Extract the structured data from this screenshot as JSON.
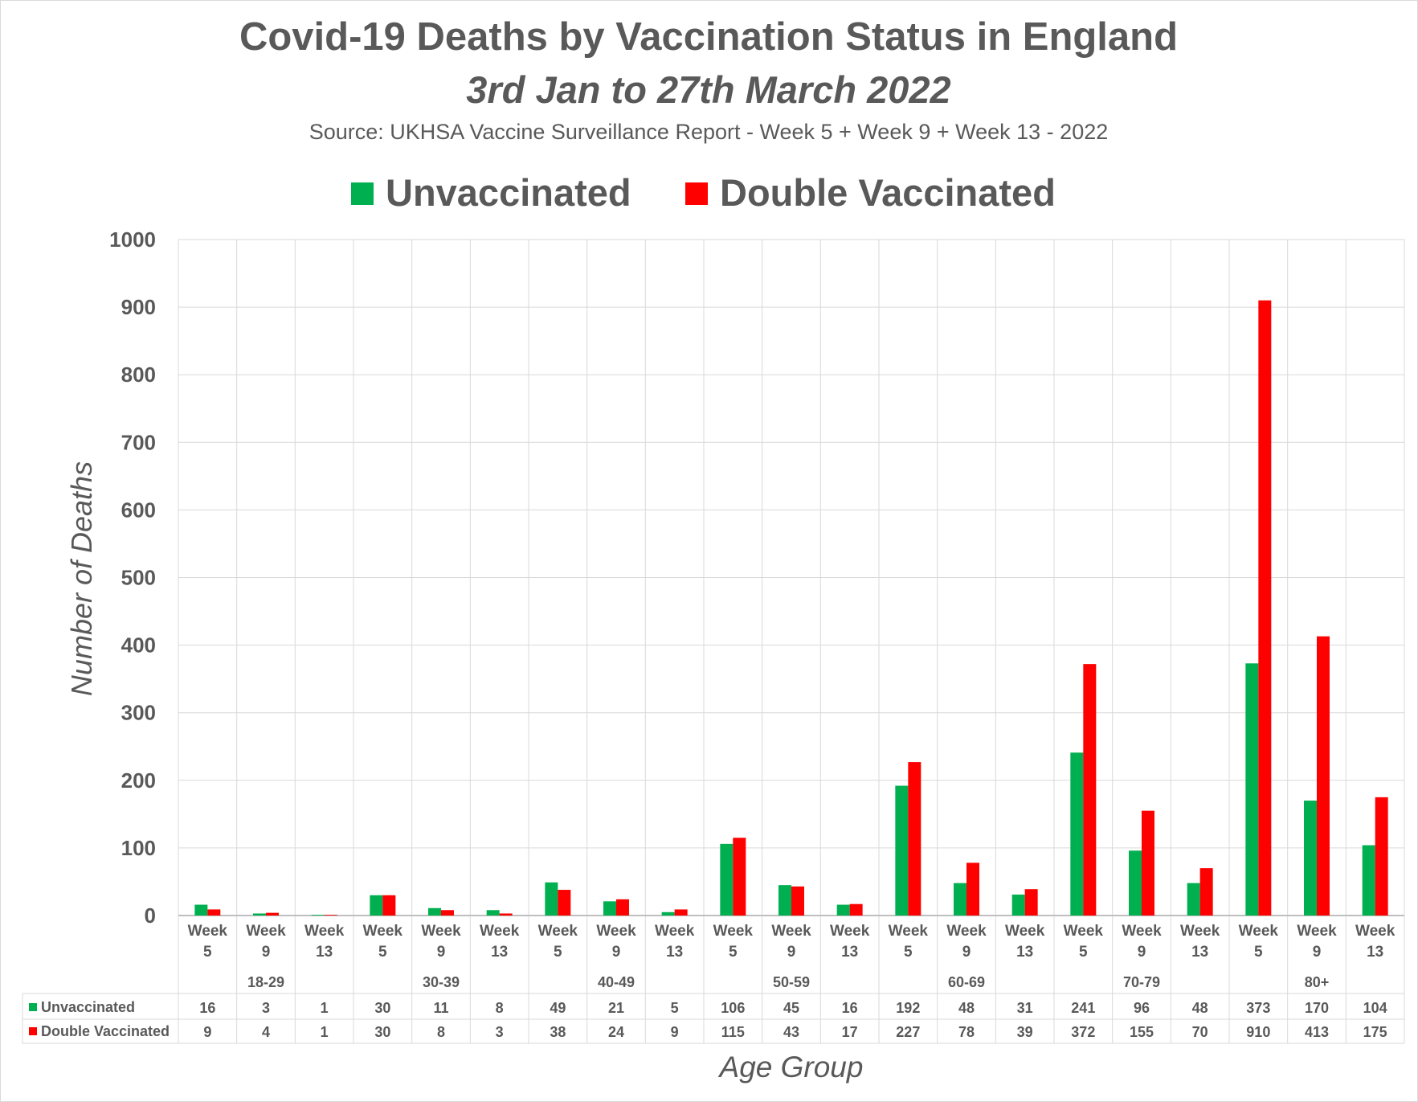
{
  "chart_data": {
    "type": "bar",
    "title": "Covid-19 Deaths by Vaccination Status in England",
    "subtitle": "3rd Jan to 27th March 2022",
    "source": "Source: UKHSA Vaccine Surveillance Report - Week 5 + Week 9 + Week 13 - 2022",
    "xlabel": "Age Group",
    "ylabel": "Number of Deaths",
    "ylim": [
      0,
      1000
    ],
    "yticks": [
      0,
      100,
      200,
      300,
      400,
      500,
      600,
      700,
      800,
      900,
      1000
    ],
    "grid": true,
    "legend_position": "top",
    "week_word": "Week",
    "groups": [
      "18-29",
      "30-39",
      "40-49",
      "50-59",
      "60-69",
      "70-79",
      "80+"
    ],
    "weeks": [
      "5",
      "9",
      "13"
    ],
    "series": [
      {
        "name": "Unvaccinated",
        "color": "#00b050",
        "values": [
          16,
          3,
          1,
          30,
          11,
          8,
          49,
          21,
          5,
          106,
          45,
          16,
          192,
          48,
          31,
          241,
          96,
          48,
          373,
          170,
          104
        ]
      },
      {
        "name": "Double Vaccinated",
        "color": "#ff0000",
        "values": [
          9,
          4,
          1,
          30,
          8,
          3,
          38,
          24,
          9,
          115,
          43,
          17,
          227,
          78,
          39,
          372,
          155,
          70,
          910,
          413,
          175
        ]
      }
    ]
  }
}
